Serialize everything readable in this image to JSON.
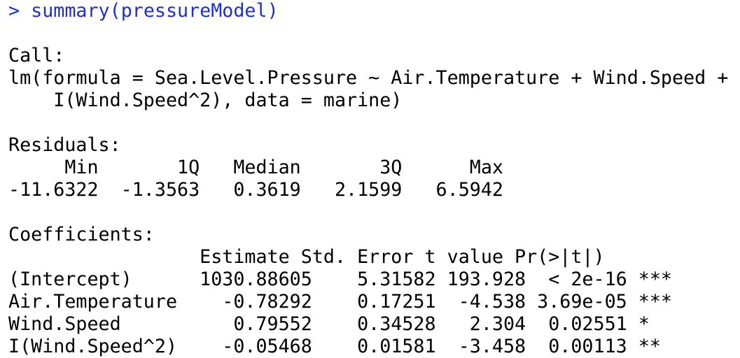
{
  "prompt_symbol": ">",
  "command": "summary(pressureModel)",
  "colors": {
    "command": "#1d2fd1",
    "output": "#000000",
    "background": "#ffffff"
  },
  "call_header": "Call:",
  "call_line1": "lm(formula = Sea.Level.Pressure ~ Air.Temperature + Wind.Speed +",
  "call_line2": "    I(Wind.Speed^2), data = marine)",
  "residuals_header": "Residuals:",
  "residuals_labels": "     Min       1Q   Median       3Q      Max ",
  "residuals_values": "-11.6322  -1.3563   0.3619   2.1599   6.5942 ",
  "coefficients_header": "Coefficients:",
  "coef_columns": "                 Estimate Std. Error t value Pr(>|t|)    ",
  "coef_rows": [
    "(Intercept)      1030.88605    5.31582 193.928  < 2e-16 ***",
    "Air.Temperature    -0.78292    0.17251  -4.538 3.69e-05 ***",
    "Wind.Speed          0.79552    0.34528   2.304  0.02551 *  ",
    "I(Wind.Speed^2)    -0.05468    0.01581  -3.458  0.00113 ** "
  ]
}
